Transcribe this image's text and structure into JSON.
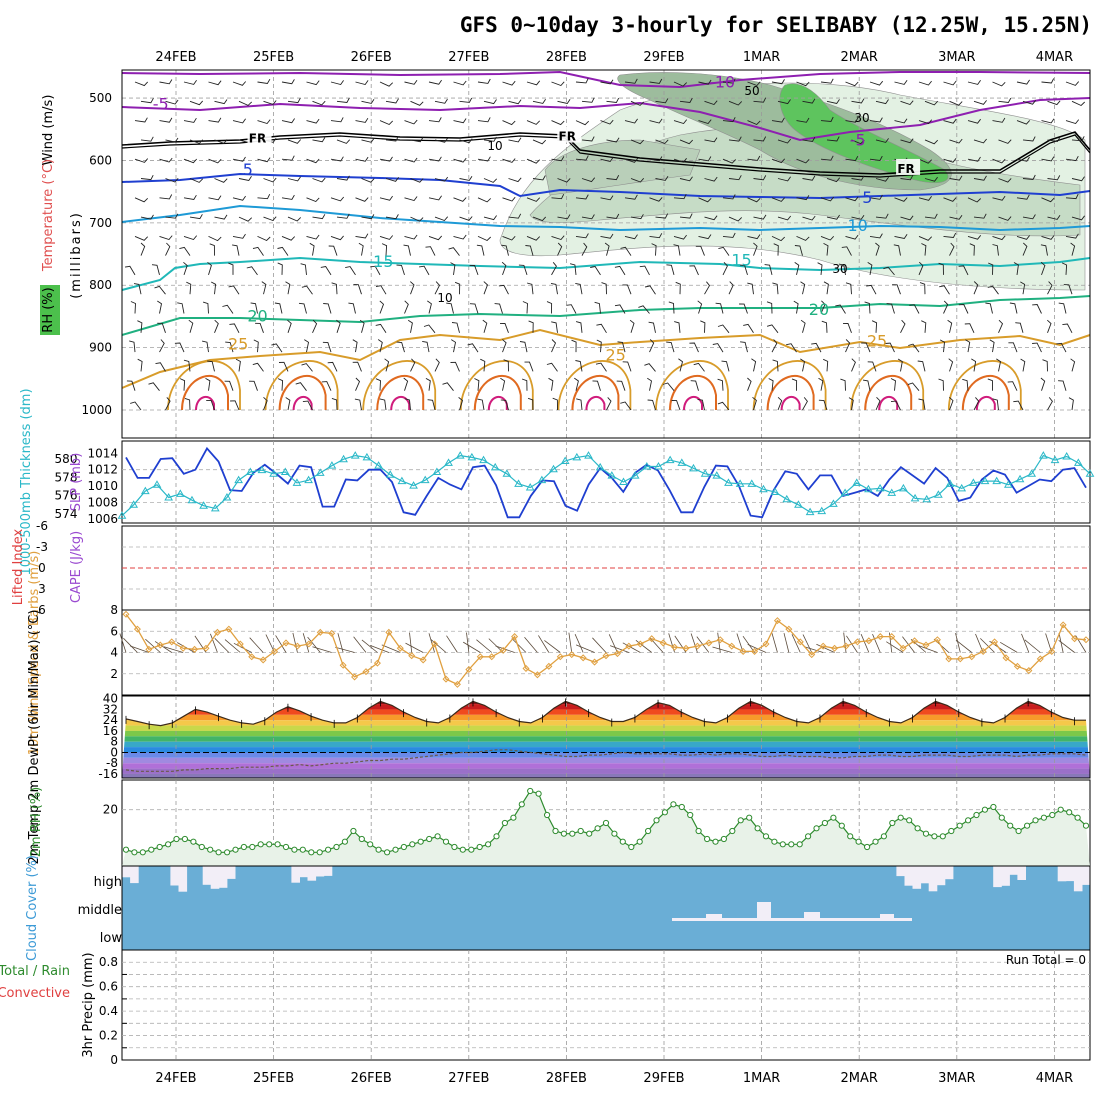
{
  "title": "GFS 0~10day 3-hourly for SELIBABY (12.25W, 15.25N)",
  "dates": [
    "24FEB",
    "25FEB",
    "26FEB",
    "27FEB",
    "28FEB",
    "29FEB",
    "1MAR",
    "2MAR",
    "3MAR",
    "4MAR"
  ],
  "colors": {
    "axis": "#000000",
    "grid": "#999999",
    "slp": "#1f3fd0",
    "thickness": "#2ab8c8",
    "wind10m": "#e0a040",
    "rh2m": "#2e8b2e",
    "rh2m_fill": "#e8f2e8",
    "cloud_fill": "#6aaed6",
    "cloud_clear": "#f2eef7",
    "lifted_zero": "#e04040"
  },
  "chart_data": [
    {
      "id": "upper_air",
      "type": "heatmap",
      "ylabel_parts": [
        "Wind (m/s)",
        "Temperature (°C)",
        "RH (%)",
        "(millibars)"
      ],
      "y_ticks": [
        500,
        600,
        700,
        800,
        900,
        1000
      ],
      "ylim": [
        455,
        1000
      ],
      "isotherm_labels": [
        {
          "text": "-10",
          "t": 0.62,
          "p": 475
        },
        {
          "text": "-5",
          "t": 0.04,
          "p": 510
        },
        {
          "text": "-5",
          "t": 0.76,
          "p": 568
        },
        {
          "text": "FR",
          "t": 0.14,
          "p": 563
        },
        {
          "text": "FR",
          "t": 0.46,
          "p": 560
        },
        {
          "text": "FR",
          "t": 0.81,
          "p": 612
        },
        {
          "text": "5",
          "t": 0.13,
          "p": 615
        },
        {
          "text": "5",
          "t": 0.77,
          "p": 660
        },
        {
          "text": "10",
          "t": 0.76,
          "p": 705
        },
        {
          "text": "15",
          "t": 0.27,
          "p": 763
        },
        {
          "text": "15",
          "t": 0.64,
          "p": 760
        },
        {
          "text": "20",
          "t": 0.14,
          "p": 850
        },
        {
          "text": "20",
          "t": 0.72,
          "p": 840
        },
        {
          "text": "25",
          "t": 0.12,
          "p": 895
        },
        {
          "text": "25",
          "t": 0.51,
          "p": 913
        },
        {
          "text": "25",
          "t": 0.78,
          "p": 890
        }
      ],
      "rh_contour_labels": [
        "10",
        "10",
        "30",
        "30",
        "50"
      ]
    },
    {
      "id": "slp_thickness",
      "type": "line",
      "ylabel_left": "1000-500mb Thickness (dm)",
      "ylabel_right": "SLP (mb)",
      "left_ticks": [
        "580",
        "578",
        "576",
        "574"
      ],
      "right_ticks": [
        "1014",
        "1012",
        "1010",
        "1008",
        "1006"
      ],
      "left_range": [
        573,
        582
      ],
      "right_range": [
        1005.5,
        1015.5
      ],
      "series": [
        {
          "name": "SLP (mb)",
          "values": [
            1013.5,
            1011.0,
            1011.0,
            1013.3,
            1013.4,
            1011.5,
            1012.0,
            1014.6,
            1013.0,
            1009.5,
            1009.4,
            1011.6,
            1012.6,
            1011.5,
            1010.3,
            1012.5,
            1012.3,
            1007.5,
            1007.5,
            1010.8,
            1010.7,
            1012.0,
            1012.0,
            1010.5,
            1006.8,
            1006.5,
            1008.8,
            1011.0,
            1010.2,
            1009.6,
            1012.3,
            1012.5,
            1010.1,
            1006.2,
            1006.2,
            1008.8,
            1010.7,
            1010.6,
            1007.6,
            1007.0,
            1010.2,
            1012.2,
            1011.0,
            1009.3,
            1011.6,
            1012.6,
            1011.9,
            1009.5,
            1006.8,
            1006.8,
            1009.9,
            1012.5,
            1012.4,
            1010.0,
            1006.4,
            1006.2,
            1009.5,
            1011.8,
            1011.5,
            1009.6,
            1011.3,
            1011.3,
            1008.8,
            1009.2,
            1009.6,
            1008.8,
            1010.8,
            1012.3,
            1011.3,
            1010.3,
            1012.2,
            1011.0,
            1008.2,
            1008.6,
            1010.8,
            1011.9,
            1011.4,
            1009.2,
            1010.0,
            1010.8,
            1010.6,
            1012.0,
            1012.2,
            1009.8
          ]
        },
        {
          "name": "1000-500mb Thickness (dm)",
          "values": [
            573.8,
            575.0,
            576.5,
            577.2,
            575.8,
            576.2,
            575.5,
            574.9,
            574.6,
            575.8,
            577.7,
            578.6,
            578.8,
            578.4,
            578.6,
            577.4,
            577.7,
            578.5,
            579.3,
            580.0,
            580.4,
            580.2,
            579.3,
            578.3,
            577.6,
            577.1,
            577.7,
            578.6,
            579.6,
            580.4,
            580.2,
            579.9,
            579.1,
            578.4,
            577.3,
            576.9,
            577.7,
            578.9,
            579.8,
            580.2,
            580.4,
            579.1,
            578.2,
            577.5,
            578.2,
            579.2,
            579.2,
            579.9,
            579.6,
            579.0,
            578.4,
            578.2,
            577.4,
            577.3,
            577.3,
            576.7,
            576.4,
            575.6,
            575.0,
            574.2,
            574.3,
            575.1,
            576.3,
            577.4,
            576.7,
            576.8,
            576.3,
            576.8,
            575.7,
            575.6,
            576.1,
            577.3,
            576.8,
            577.4,
            577.6,
            577.6,
            577.2,
            577.8,
            578.4,
            580.4,
            579.9,
            580.3,
            579.6,
            578.4
          ]
        }
      ]
    },
    {
      "id": "lifted_cape",
      "type": "line",
      "ylabel_left": "Lifted Index",
      "ylabel_right": "CAPE (J/kg)",
      "y_ticks": [
        "-6",
        "-3",
        "0",
        "3",
        "6"
      ],
      "ylim": [
        -6,
        6
      ],
      "series": []
    },
    {
      "id": "wind10m",
      "type": "line",
      "ylabel": "10m Wind Speed & Barbs (m/s)",
      "y_ticks": [
        "8",
        "6",
        "4",
        "2"
      ],
      "ylim": [
        0,
        8
      ],
      "series": [
        {
          "name": "10m Wind Speed (m/s)",
          "values": [
            7.6,
            6.2,
            4.3,
            4.7,
            5.0,
            4.4,
            4.3,
            4.4,
            5.9,
            6.2,
            4.8,
            3.6,
            3.3,
            4.1,
            4.9,
            4.6,
            4.8,
            5.9,
            5.8,
            2.8,
            1.7,
            2.2,
            3.0,
            5.9,
            4.4,
            3.7,
            3.3,
            4.8,
            1.5,
            1.0,
            2.4,
            3.6,
            3.6,
            4.2,
            5.5,
            2.5,
            1.9,
            2.7,
            3.6,
            3.8,
            3.5,
            3.1,
            3.7,
            3.9,
            4.6,
            4.8,
            5.3,
            4.9,
            4.5,
            4.4,
            4.6,
            4.9,
            5.2,
            4.6,
            4.1,
            4.1,
            4.8,
            7.0,
            6.2,
            5.0,
            3.8,
            4.6,
            4.4,
            4.6,
            5.0,
            5.1,
            5.5,
            5.5,
            4.4,
            5.1,
            4.7,
            5.2,
            3.4,
            3.4,
            3.6,
            4.1,
            5.0,
            3.5,
            2.7,
            2.3,
            3.4,
            4.1,
            6.6,
            5.3,
            5.2
          ]
        }
      ]
    },
    {
      "id": "temp2m",
      "type": "area",
      "ylabel": "2m Temp 2m DewPt (6hr Min/Max) (°C)",
      "y_ticks": [
        "40",
        "32",
        "24",
        "16",
        "8",
        "0",
        "-8",
        "-16"
      ],
      "ylim": [
        -19,
        42
      ],
      "series": [
        {
          "name": "2m Temp (°C)",
          "values": [
            25,
            23,
            21,
            20,
            22,
            27,
            32,
            30,
            27,
            24,
            22,
            21,
            24,
            30,
            34,
            31,
            27,
            24,
            22,
            22,
            26,
            33,
            38,
            35,
            30,
            26,
            23,
            22,
            26,
            33,
            38,
            35,
            30,
            26,
            23,
            22,
            26,
            33,
            38,
            35,
            30,
            26,
            23,
            23,
            26,
            32,
            37,
            35,
            30,
            26,
            23,
            22,
            26,
            33,
            38,
            35,
            30,
            26,
            23,
            22,
            26,
            33,
            38,
            35,
            30,
            26,
            23,
            22,
            26,
            33,
            38,
            35,
            30,
            26,
            23,
            22,
            26,
            33,
            38,
            35,
            30,
            26,
            24,
            24
          ]
        },
        {
          "name": "2m DewPt (°C)",
          "values": [
            -13,
            -14,
            -14,
            -14,
            -14,
            -13,
            -13,
            -12,
            -12,
            -12,
            -11,
            -11,
            -11,
            -10,
            -10,
            -9,
            -10,
            -9,
            -8,
            -8,
            -7,
            -6,
            -6,
            -5,
            -5,
            -4,
            -3,
            -2,
            -1,
            0,
            0,
            1,
            2,
            2,
            1,
            0,
            -1,
            -2,
            -3,
            -3,
            -2,
            -2,
            -1,
            0,
            -1,
            -1,
            -1,
            -1,
            -2,
            -2,
            -1,
            -2,
            -1,
            -1,
            -2,
            -3,
            -3,
            -2,
            -3,
            -3,
            -3,
            -4,
            -4,
            -3,
            -3,
            -2,
            -2,
            -3,
            -3,
            -2,
            -2,
            -2,
            -3,
            -3,
            -2,
            -2,
            -2,
            -3,
            -2,
            -2,
            -1,
            -1,
            -1,
            -2
          ]
        }
      ]
    },
    {
      "id": "rh2m",
      "type": "area",
      "ylabel": "2m RH (%)",
      "y_ticks": [
        "20"
      ],
      "ylim": [
        0,
        30
      ],
      "series": [
        {
          "name": "2m RH (%)",
          "values": [
            5,
            4,
            4,
            5,
            6,
            7,
            9,
            9,
            8,
            6,
            5,
            4,
            4,
            5,
            6,
            6,
            7,
            7,
            7,
            6,
            5,
            5,
            4,
            4,
            5,
            6,
            8,
            12,
            9,
            7,
            5,
            4,
            5,
            6,
            7,
            8,
            9,
            10,
            8,
            6,
            5,
            5,
            6,
            7,
            10,
            15,
            17,
            22,
            27,
            26,
            18,
            12,
            11,
            11,
            12,
            11,
            13,
            15,
            11,
            8,
            6,
            8,
            12,
            16,
            19,
            22,
            21,
            18,
            12,
            9,
            8,
            9,
            12,
            16,
            17,
            13,
            10,
            8,
            7,
            7,
            7,
            10,
            13,
            15,
            17,
            14,
            10,
            8,
            6,
            8,
            10,
            15,
            17,
            16,
            13,
            11,
            10,
            10,
            12,
            14,
            16,
            18,
            20,
            21,
            17,
            14,
            12,
            14,
            16,
            17,
            18,
            20,
            19,
            17,
            14
          ]
        }
      ]
    },
    {
      "id": "cloud",
      "type": "area",
      "ylabel": "Cloud Cover (%)",
      "levels": [
        "high",
        "middle",
        "low"
      ],
      "series": [
        {
          "name": "high clear",
          "values": [
            1,
            1,
            0,
            0,
            0,
            0,
            1,
            1,
            0,
            0,
            1,
            1,
            1,
            1,
            0,
            0,
            0,
            0,
            0,
            0,
            0,
            1,
            1,
            1,
            1,
            1,
            0,
            0,
            0,
            0,
            0,
            0,
            0,
            0,
            0,
            0,
            0,
            0,
            0,
            0,
            0,
            0,
            0,
            0,
            0,
            0,
            0,
            0,
            0,
            0,
            0,
            0,
            0,
            0,
            0,
            0,
            0,
            0,
            0,
            0,
            0,
            0,
            0,
            0,
            0,
            0,
            0,
            0,
            0,
            0,
            0,
            0,
            0,
            0,
            0,
            0,
            0,
            0,
            0,
            0,
            0,
            0,
            0,
            0,
            0,
            0,
            0,
            0,
            0,
            0,
            0,
            0,
            0,
            0,
            0,
            0,
            1,
            1,
            1,
            1,
            1,
            1,
            1,
            0,
            0,
            0,
            0,
            0,
            1,
            1,
            1,
            1,
            0,
            0,
            0,
            0,
            1,
            1,
            1,
            1
          ]
        },
        {
          "name": "middle clear",
          "values": [
            0,
            0,
            0,
            0,
            0,
            0,
            0,
            0,
            0,
            0,
            0,
            0,
            0,
            0,
            0,
            0,
            0,
            0,
            0,
            0,
            0,
            0,
            0,
            0,
            0,
            0,
            0,
            0,
            0,
            0,
            0,
            0,
            0,
            0,
            0,
            0,
            0,
            0,
            0,
            0,
            0,
            0,
            0,
            0,
            0,
            0,
            0,
            0,
            0,
            0,
            0,
            0,
            0,
            0,
            0,
            0,
            0,
            0,
            0,
            0,
            0,
            0,
            0,
            0,
            0,
            0,
            0,
            0,
            0,
            0,
            0,
            0,
            0,
            0,
            0,
            0,
            0,
            0,
            0,
            0,
            0,
            0,
            0,
            0,
            0,
            0,
            0,
            0,
            0,
            0,
            0,
            0,
            0,
            0,
            0,
            0,
            0,
            0,
            0,
            0,
            0,
            0,
            0,
            0,
            0,
            0,
            0,
            0,
            0,
            0,
            0,
            0,
            0,
            0,
            0,
            0,
            0,
            0,
            0,
            0
          ]
        }
      ]
    },
    {
      "id": "precip",
      "type": "bar",
      "ylabel_left": "3hr Precip (mm)",
      "legend_parts": [
        "Total / Rain",
        "Convective"
      ],
      "y_ticks": [
        "0.8",
        "0.6",
        "0.4",
        "0.2",
        "0"
      ],
      "ylim": [
        0,
        0.9
      ],
      "run_total_label": "Run Total = 0",
      "series": [
        {
          "name": "3hr Precip (mm)",
          "values": []
        }
      ]
    }
  ]
}
